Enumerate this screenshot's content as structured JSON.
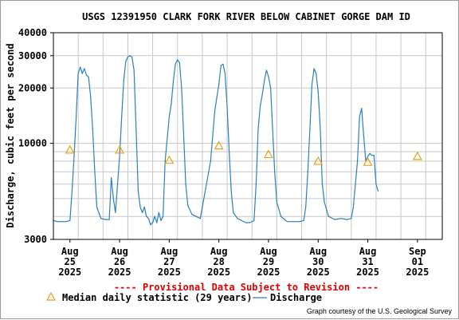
{
  "chart_data": {
    "type": "line",
    "title": "USGS 12391950 CLARK FORK RIVER BELOW CABINET GORGE DAM ID",
    "ylabel": "Discharge, cubic feet per second",
    "xlabel": "",
    "y_scale": "log",
    "ylim": [
      3000,
      40000
    ],
    "y_ticks": [
      3000,
      10000,
      20000,
      30000,
      40000
    ],
    "y_tick_labels": [
      "3000",
      "10000",
      "20000",
      "30000",
      "40000"
    ],
    "x_range": [
      "2025-08-24T16:00",
      "2025-09-01T12:00"
    ],
    "x_ticks": [
      {
        "date": "2025-08-25",
        "label": [
          "Aug",
          "25",
          "2025"
        ]
      },
      {
        "date": "2025-08-26",
        "label": [
          "Aug",
          "26",
          "2025"
        ]
      },
      {
        "date": "2025-08-27",
        "label": [
          "Aug",
          "27",
          "2025"
        ]
      },
      {
        "date": "2025-08-28",
        "label": [
          "Aug",
          "28",
          "2025"
        ]
      },
      {
        "date": "2025-08-29",
        "label": [
          "Aug",
          "29",
          "2025"
        ]
      },
      {
        "date": "2025-08-30",
        "label": [
          "Aug",
          "30",
          "2025"
        ]
      },
      {
        "date": "2025-08-31",
        "label": [
          "Aug",
          "31",
          "2025"
        ]
      },
      {
        "date": "2025-09-01",
        "label": [
          "Sep",
          "01",
          "2025"
        ]
      }
    ],
    "grid": true,
    "legend_position": "bottom",
    "series": [
      {
        "name": "Discharge",
        "color": "#2a7fbf",
        "style": "line",
        "points": [
          [
            "2025-08-24T16:00",
            3800
          ],
          [
            "2025-08-24T18:00",
            3750
          ],
          [
            "2025-08-24T20:00",
            3750
          ],
          [
            "2025-08-24T22:00",
            3750
          ],
          [
            "2025-08-25T00:00",
            3800
          ],
          [
            "2025-08-25T01:00",
            5500
          ],
          [
            "2025-08-25T02:00",
            8500
          ],
          [
            "2025-08-25T03:00",
            14000
          ],
          [
            "2025-08-25T04:00",
            24000
          ],
          [
            "2025-08-25T05:00",
            26000
          ],
          [
            "2025-08-25T06:00",
            24000
          ],
          [
            "2025-08-25T07:00",
            25500
          ],
          [
            "2025-08-25T08:00",
            23500
          ],
          [
            "2025-08-25T09:00",
            23000
          ],
          [
            "2025-08-25T10:00",
            18000
          ],
          [
            "2025-08-25T11:00",
            12000
          ],
          [
            "2025-08-25T12:00",
            7000
          ],
          [
            "2025-08-25T13:00",
            4500
          ],
          [
            "2025-08-25T15:00",
            3900
          ],
          [
            "2025-08-25T17:00",
            3850
          ],
          [
            "2025-08-25T19:00",
            3850
          ],
          [
            "2025-08-25T20:00",
            6500
          ],
          [
            "2025-08-25T21:00",
            5000
          ],
          [
            "2025-08-25T22:00",
            4200
          ],
          [
            "2025-08-26T00:00",
            8500
          ],
          [
            "2025-08-26T01:00",
            14000
          ],
          [
            "2025-08-26T02:00",
            22000
          ],
          [
            "2025-08-26T03:00",
            28000
          ],
          [
            "2025-08-26T04:00",
            29500
          ],
          [
            "2025-08-26T05:00",
            30000
          ],
          [
            "2025-08-26T06:00",
            29500
          ],
          [
            "2025-08-26T07:00",
            25000
          ],
          [
            "2025-08-26T08:00",
            12000
          ],
          [
            "2025-08-26T09:00",
            5500
          ],
          [
            "2025-08-26T10:00",
            4500
          ],
          [
            "2025-08-26T11:00",
            4200
          ],
          [
            "2025-08-26T12:00",
            4500
          ],
          [
            "2025-08-26T13:00",
            4000
          ],
          [
            "2025-08-26T14:00",
            3900
          ],
          [
            "2025-08-26T15:00",
            3600
          ],
          [
            "2025-08-26T16:00",
            3700
          ],
          [
            "2025-08-26T17:00",
            4000
          ],
          [
            "2025-08-26T18:00",
            3700
          ],
          [
            "2025-08-26T19:00",
            4200
          ],
          [
            "2025-08-26T20:00",
            3800
          ],
          [
            "2025-08-26T21:00",
            4000
          ],
          [
            "2025-08-26T22:00",
            8000
          ],
          [
            "2025-08-27T00:00",
            14000
          ],
          [
            "2025-08-27T01:00",
            16500
          ],
          [
            "2025-08-27T02:00",
            22000
          ],
          [
            "2025-08-27T03:00",
            27000
          ],
          [
            "2025-08-27T04:00",
            28500
          ],
          [
            "2025-08-27T05:00",
            27500
          ],
          [
            "2025-08-27T06:00",
            20000
          ],
          [
            "2025-08-27T07:00",
            11000
          ],
          [
            "2025-08-27T08:00",
            6000
          ],
          [
            "2025-08-27T09:00",
            4600
          ],
          [
            "2025-08-27T11:00",
            4100
          ],
          [
            "2025-08-27T13:00",
            4000
          ],
          [
            "2025-08-27T15:00",
            3900
          ],
          [
            "2025-08-27T16:00",
            4500
          ],
          [
            "2025-08-27T18:00",
            6000
          ],
          [
            "2025-08-27T20:00",
            8000
          ],
          [
            "2025-08-27T22:00",
            15000
          ],
          [
            "2025-08-28T00:00",
            21000
          ],
          [
            "2025-08-28T01:00",
            26500
          ],
          [
            "2025-08-28T02:00",
            27000
          ],
          [
            "2025-08-28T03:00",
            24000
          ],
          [
            "2025-08-28T04:00",
            16000
          ],
          [
            "2025-08-28T05:00",
            9000
          ],
          [
            "2025-08-28T06:00",
            5500
          ],
          [
            "2025-08-28T07:00",
            4200
          ],
          [
            "2025-08-28T09:00",
            3900
          ],
          [
            "2025-08-28T11:00",
            3800
          ],
          [
            "2025-08-28T13:00",
            3700
          ],
          [
            "2025-08-28T15:00",
            3700
          ],
          [
            "2025-08-28T17:00",
            3800
          ],
          [
            "2025-08-28T18:00",
            6000
          ],
          [
            "2025-08-28T19:00",
            12000
          ],
          [
            "2025-08-28T20:00",
            16000
          ],
          [
            "2025-08-28T21:00",
            18500
          ],
          [
            "2025-08-28T22:00",
            22000
          ],
          [
            "2025-08-28T23:00",
            25000
          ],
          [
            "2025-08-29T00:00",
            23000
          ],
          [
            "2025-08-29T01:00",
            20000
          ],
          [
            "2025-08-29T02:00",
            12000
          ],
          [
            "2025-08-29T03:00",
            7000
          ],
          [
            "2025-08-29T04:00",
            4800
          ],
          [
            "2025-08-29T06:00",
            4000
          ],
          [
            "2025-08-29T09:00",
            3750
          ],
          [
            "2025-08-29T12:00",
            3750
          ],
          [
            "2025-08-29T15:00",
            3750
          ],
          [
            "2025-08-29T17:00",
            3800
          ],
          [
            "2025-08-29T18:00",
            4500
          ],
          [
            "2025-08-29T19:00",
            7000
          ],
          [
            "2025-08-29T20:00",
            12000
          ],
          [
            "2025-08-29T21:00",
            21000
          ],
          [
            "2025-08-29T22:00",
            25500
          ],
          [
            "2025-08-29T23:00",
            24000
          ],
          [
            "2025-08-30T00:00",
            19000
          ],
          [
            "2025-08-30T01:00",
            12000
          ],
          [
            "2025-08-30T02:00",
            6000
          ],
          [
            "2025-08-30T03:00",
            4800
          ],
          [
            "2025-08-30T05:00",
            4000
          ],
          [
            "2025-08-30T08:00",
            3850
          ],
          [
            "2025-08-30T11:00",
            3900
          ],
          [
            "2025-08-30T14:00",
            3850
          ],
          [
            "2025-08-30T16:00",
            3900
          ],
          [
            "2025-08-30T17:00",
            4500
          ],
          [
            "2025-08-30T18:00",
            6000
          ],
          [
            "2025-08-30T19:00",
            8000
          ],
          [
            "2025-08-30T20:00",
            14000
          ],
          [
            "2025-08-30T21:00",
            15500
          ],
          [
            "2025-08-30T22:00",
            11000
          ],
          [
            "2025-08-30T23:00",
            8000
          ],
          [
            "2025-08-31T00:00",
            8500
          ],
          [
            "2025-08-31T01:00",
            8800
          ],
          [
            "2025-08-31T02:00",
            8600
          ],
          [
            "2025-08-31T03:00",
            8600
          ],
          [
            "2025-08-31T04:00",
            6000
          ],
          [
            "2025-08-31T05:00",
            5500
          ]
        ]
      },
      {
        "name": "Median daily statistic (29 years)",
        "color": "#e8a317",
        "style": "triangle-markers",
        "points": [
          [
            "2025-08-25T00:00",
            9200
          ],
          [
            "2025-08-26T00:00",
            9200
          ],
          [
            "2025-08-27T00:00",
            8100
          ],
          [
            "2025-08-28T00:00",
            9700
          ],
          [
            "2025-08-29T00:00",
            8700
          ],
          [
            "2025-08-30T00:00",
            8000
          ],
          [
            "2025-08-31T00:00",
            7900
          ],
          [
            "2025-09-01T00:00",
            8500
          ]
        ]
      }
    ]
  },
  "provisional_note": "---- Provisional Data Subject to Revision ----",
  "legend": {
    "median_label": "Median daily statistic (29 years)",
    "discharge_label": "Discharge"
  },
  "courtesy": "Graph courtesy of the U.S. Geological Survey"
}
